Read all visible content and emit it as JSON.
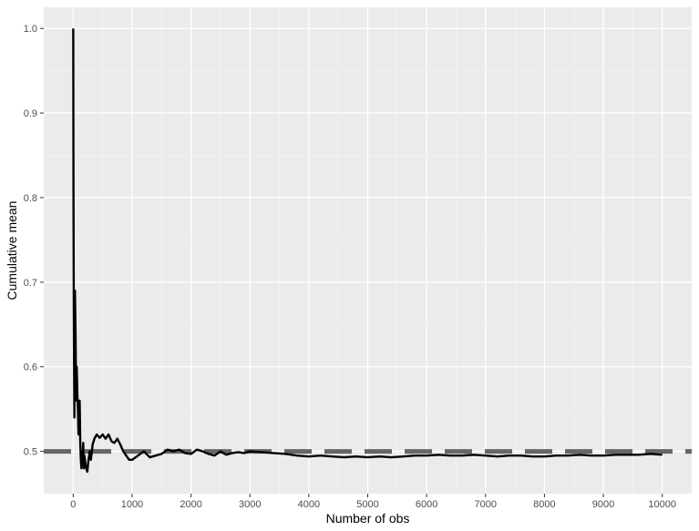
{
  "chart_data": {
    "type": "line",
    "title": "",
    "xlabel": "Number of obs",
    "ylabel": "Cumulative mean",
    "xlim": [
      -500,
      10500
    ],
    "ylim": [
      0.45,
      1.025
    ],
    "x_ticks": [
      0,
      1000,
      2000,
      3000,
      4000,
      5000,
      6000,
      7000,
      8000,
      9000,
      10000
    ],
    "x_tick_labels": [
      "0",
      "1000",
      "2000",
      "3000",
      "4000",
      "5000",
      "6000",
      "7000",
      "8000",
      "9000",
      "10000"
    ],
    "y_ticks": [
      0.5,
      0.6,
      0.7,
      0.8,
      0.9,
      1.0
    ],
    "y_tick_labels": [
      "0.5",
      "0.6",
      "0.7",
      "0.8",
      "0.9",
      "1.0"
    ],
    "grid": true,
    "legend": "none",
    "panel_background": "#ebebeb",
    "grid_color": "#ffffff",
    "series": [
      {
        "x": [
          1,
          5,
          10,
          15,
          20,
          25,
          30,
          40,
          50,
          60,
          70,
          80,
          90,
          100,
          110,
          120,
          130,
          140,
          150,
          160,
          170,
          180,
          190,
          200,
          220,
          240,
          260,
          280,
          300,
          330,
          360,
          400,
          450,
          500,
          550,
          600,
          650,
          700,
          750,
          800,
          850,
          900,
          950,
          1000,
          1100,
          1200,
          1300,
          1400,
          1500,
          1600,
          1700,
          1800,
          1900,
          2000,
          2100,
          2200,
          2300,
          2400,
          2500,
          2600,
          2700,
          2800,
          2900,
          3000,
          3200,
          3400,
          3600,
          3800,
          4000,
          4200,
          4400,
          4600,
          4800,
          5000,
          5200,
          5400,
          5600,
          5800,
          6000,
          6200,
          6400,
          6600,
          6800,
          7000,
          7200,
          7400,
          7600,
          7800,
          8000,
          8200,
          8400,
          8600,
          8800,
          9000,
          9200,
          9400,
          9600,
          9800,
          10000
        ],
        "y": [
          1.0,
          0.8,
          0.67,
          0.6,
          0.54,
          0.62,
          0.69,
          0.64,
          0.56,
          0.6,
          0.57,
          0.55,
          0.52,
          0.54,
          0.56,
          0.51,
          0.49,
          0.48,
          0.5,
          0.49,
          0.51,
          0.48,
          0.495,
          0.49,
          0.48,
          0.476,
          0.49,
          0.5,
          0.49,
          0.508,
          0.515,
          0.52,
          0.516,
          0.52,
          0.515,
          0.52,
          0.512,
          0.51,
          0.515,
          0.508,
          0.5,
          0.495,
          0.49,
          0.49,
          0.495,
          0.5,
          0.493,
          0.495,
          0.497,
          0.502,
          0.5,
          0.502,
          0.498,
          0.497,
          0.502,
          0.5,
          0.497,
          0.495,
          0.5,
          0.496,
          0.498,
          0.499,
          0.498,
          0.5,
          0.499,
          0.498,
          0.497,
          0.495,
          0.494,
          0.495,
          0.494,
          0.493,
          0.494,
          0.493,
          0.494,
          0.493,
          0.494,
          0.495,
          0.495,
          0.496,
          0.495,
          0.495,
          0.496,
          0.495,
          0.494,
          0.495,
          0.495,
          0.494,
          0.494,
          0.495,
          0.495,
          0.496,
          0.495,
          0.495,
          0.496,
          0.496,
          0.496,
          0.497,
          0.496
        ],
        "color": "#000000"
      }
    ],
    "reference_line": {
      "y": 0.5,
      "style": "dashed",
      "color": "#666666"
    }
  }
}
